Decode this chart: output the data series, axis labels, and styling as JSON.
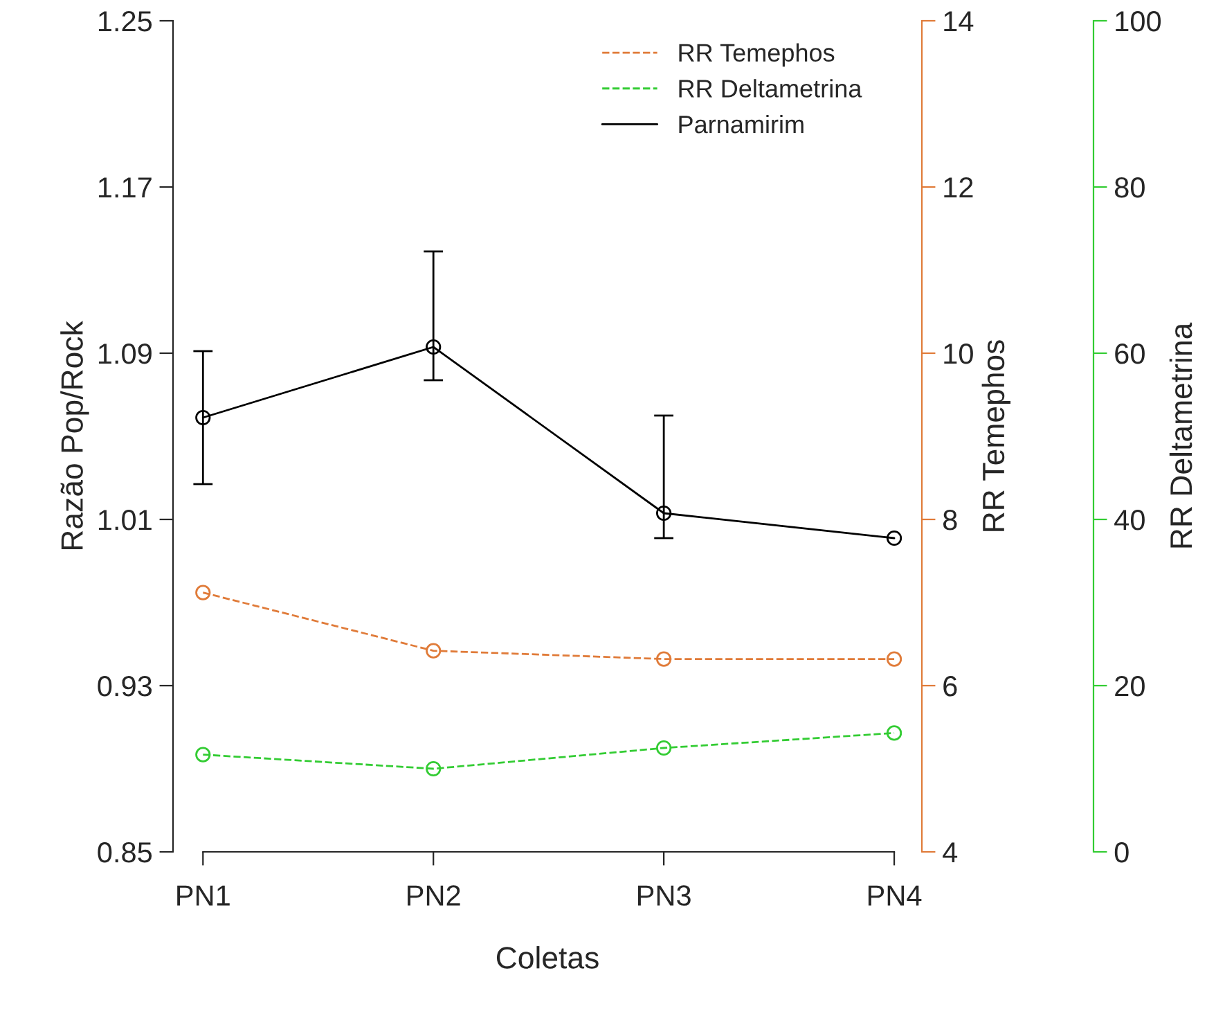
{
  "chart_data": {
    "type": "line",
    "xlabel": "Coletas",
    "ylabel": "Razão Pop/Rock",
    "y2label": "RR Temephos",
    "y3label": "RR Deltametrina",
    "categories": [
      "PN1",
      "PN2",
      "PN3",
      "PN4"
    ],
    "series": [
      {
        "name": "RR Temephos",
        "color": "#e07b39",
        "axis": "y2",
        "line_style": "dashed",
        "values": [
          7.12,
          6.42,
          6.32,
          6.32
        ]
      },
      {
        "name": "RR Deltametrina",
        "color": "#33cc33",
        "axis": "y3",
        "line_style": "dashed",
        "values": [
          11.7,
          10.0,
          12.5,
          14.3
        ]
      },
      {
        "name": "Parnamirim",
        "color": "#000000",
        "axis": "y",
        "line_style": "solid",
        "values": [
          1.059,
          1.093,
          1.013,
          1.001
        ],
        "errors": [
          [
            1.027,
            1.091
          ],
          [
            1.077,
            1.139
          ],
          [
            1.001,
            1.06
          ],
          null
        ]
      }
    ],
    "ylim": [
      0.85,
      1.25
    ],
    "yticks": [
      0.85,
      0.93,
      1.01,
      1.09,
      1.17,
      1.25
    ],
    "y2lim": [
      4,
      14
    ],
    "y2ticks": [
      4,
      6,
      8,
      10,
      12,
      14
    ],
    "y3lim": [
      0,
      100
    ],
    "y3ticks": [
      0,
      20,
      40,
      60,
      80,
      100
    ],
    "marker": "circle",
    "grid": false,
    "legend": "top right"
  }
}
